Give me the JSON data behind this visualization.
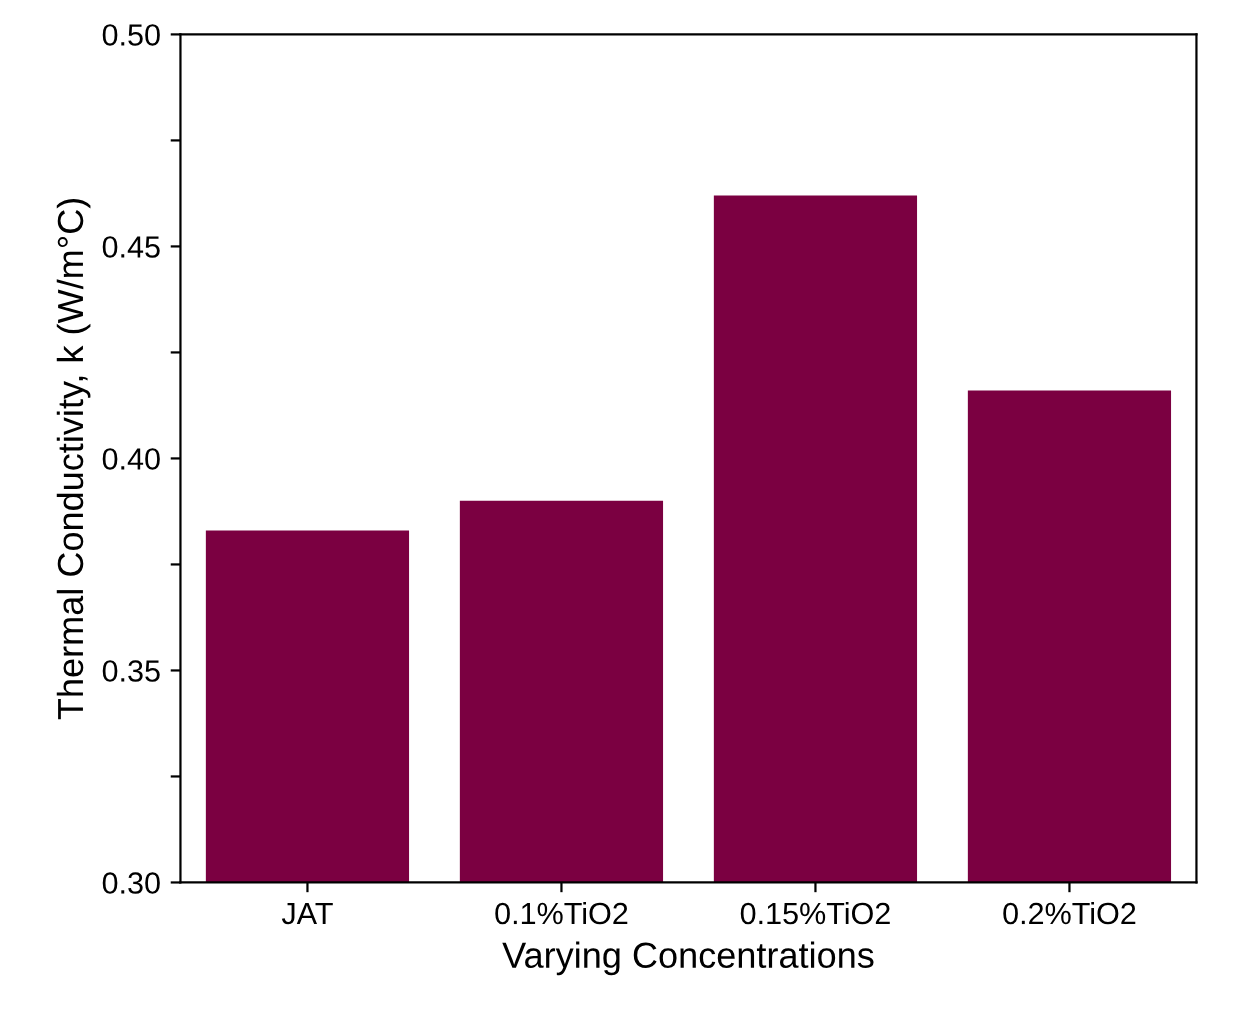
{
  "chart_data": {
    "type": "bar",
    "xlabel": "Varying Concentrations",
    "ylabel": "Thermal Conductivity, k (W/m°C)",
    "categories": [
      "JAT",
      "0.1%TiO2",
      "0.15%TiO2",
      "0.2%TiO2"
    ],
    "values": [
      0.383,
      0.39,
      0.462,
      0.416
    ],
    "color": "#7b0041",
    "ylim": [
      0.3,
      0.5
    ],
    "yticks": [
      {
        "value": 0.3,
        "label": "0.30"
      },
      {
        "value": 0.325,
        "label": null
      },
      {
        "value": 0.35,
        "label": "0.35"
      },
      {
        "value": 0.375,
        "label": null
      },
      {
        "value": 0.4,
        "label": "0.40"
      },
      {
        "value": 0.425,
        "label": null
      },
      {
        "value": 0.45,
        "label": "0.45"
      },
      {
        "value": 0.475,
        "label": null
      },
      {
        "value": 0.5,
        "label": "0.50"
      }
    ],
    "grid": false,
    "legend": false
  }
}
